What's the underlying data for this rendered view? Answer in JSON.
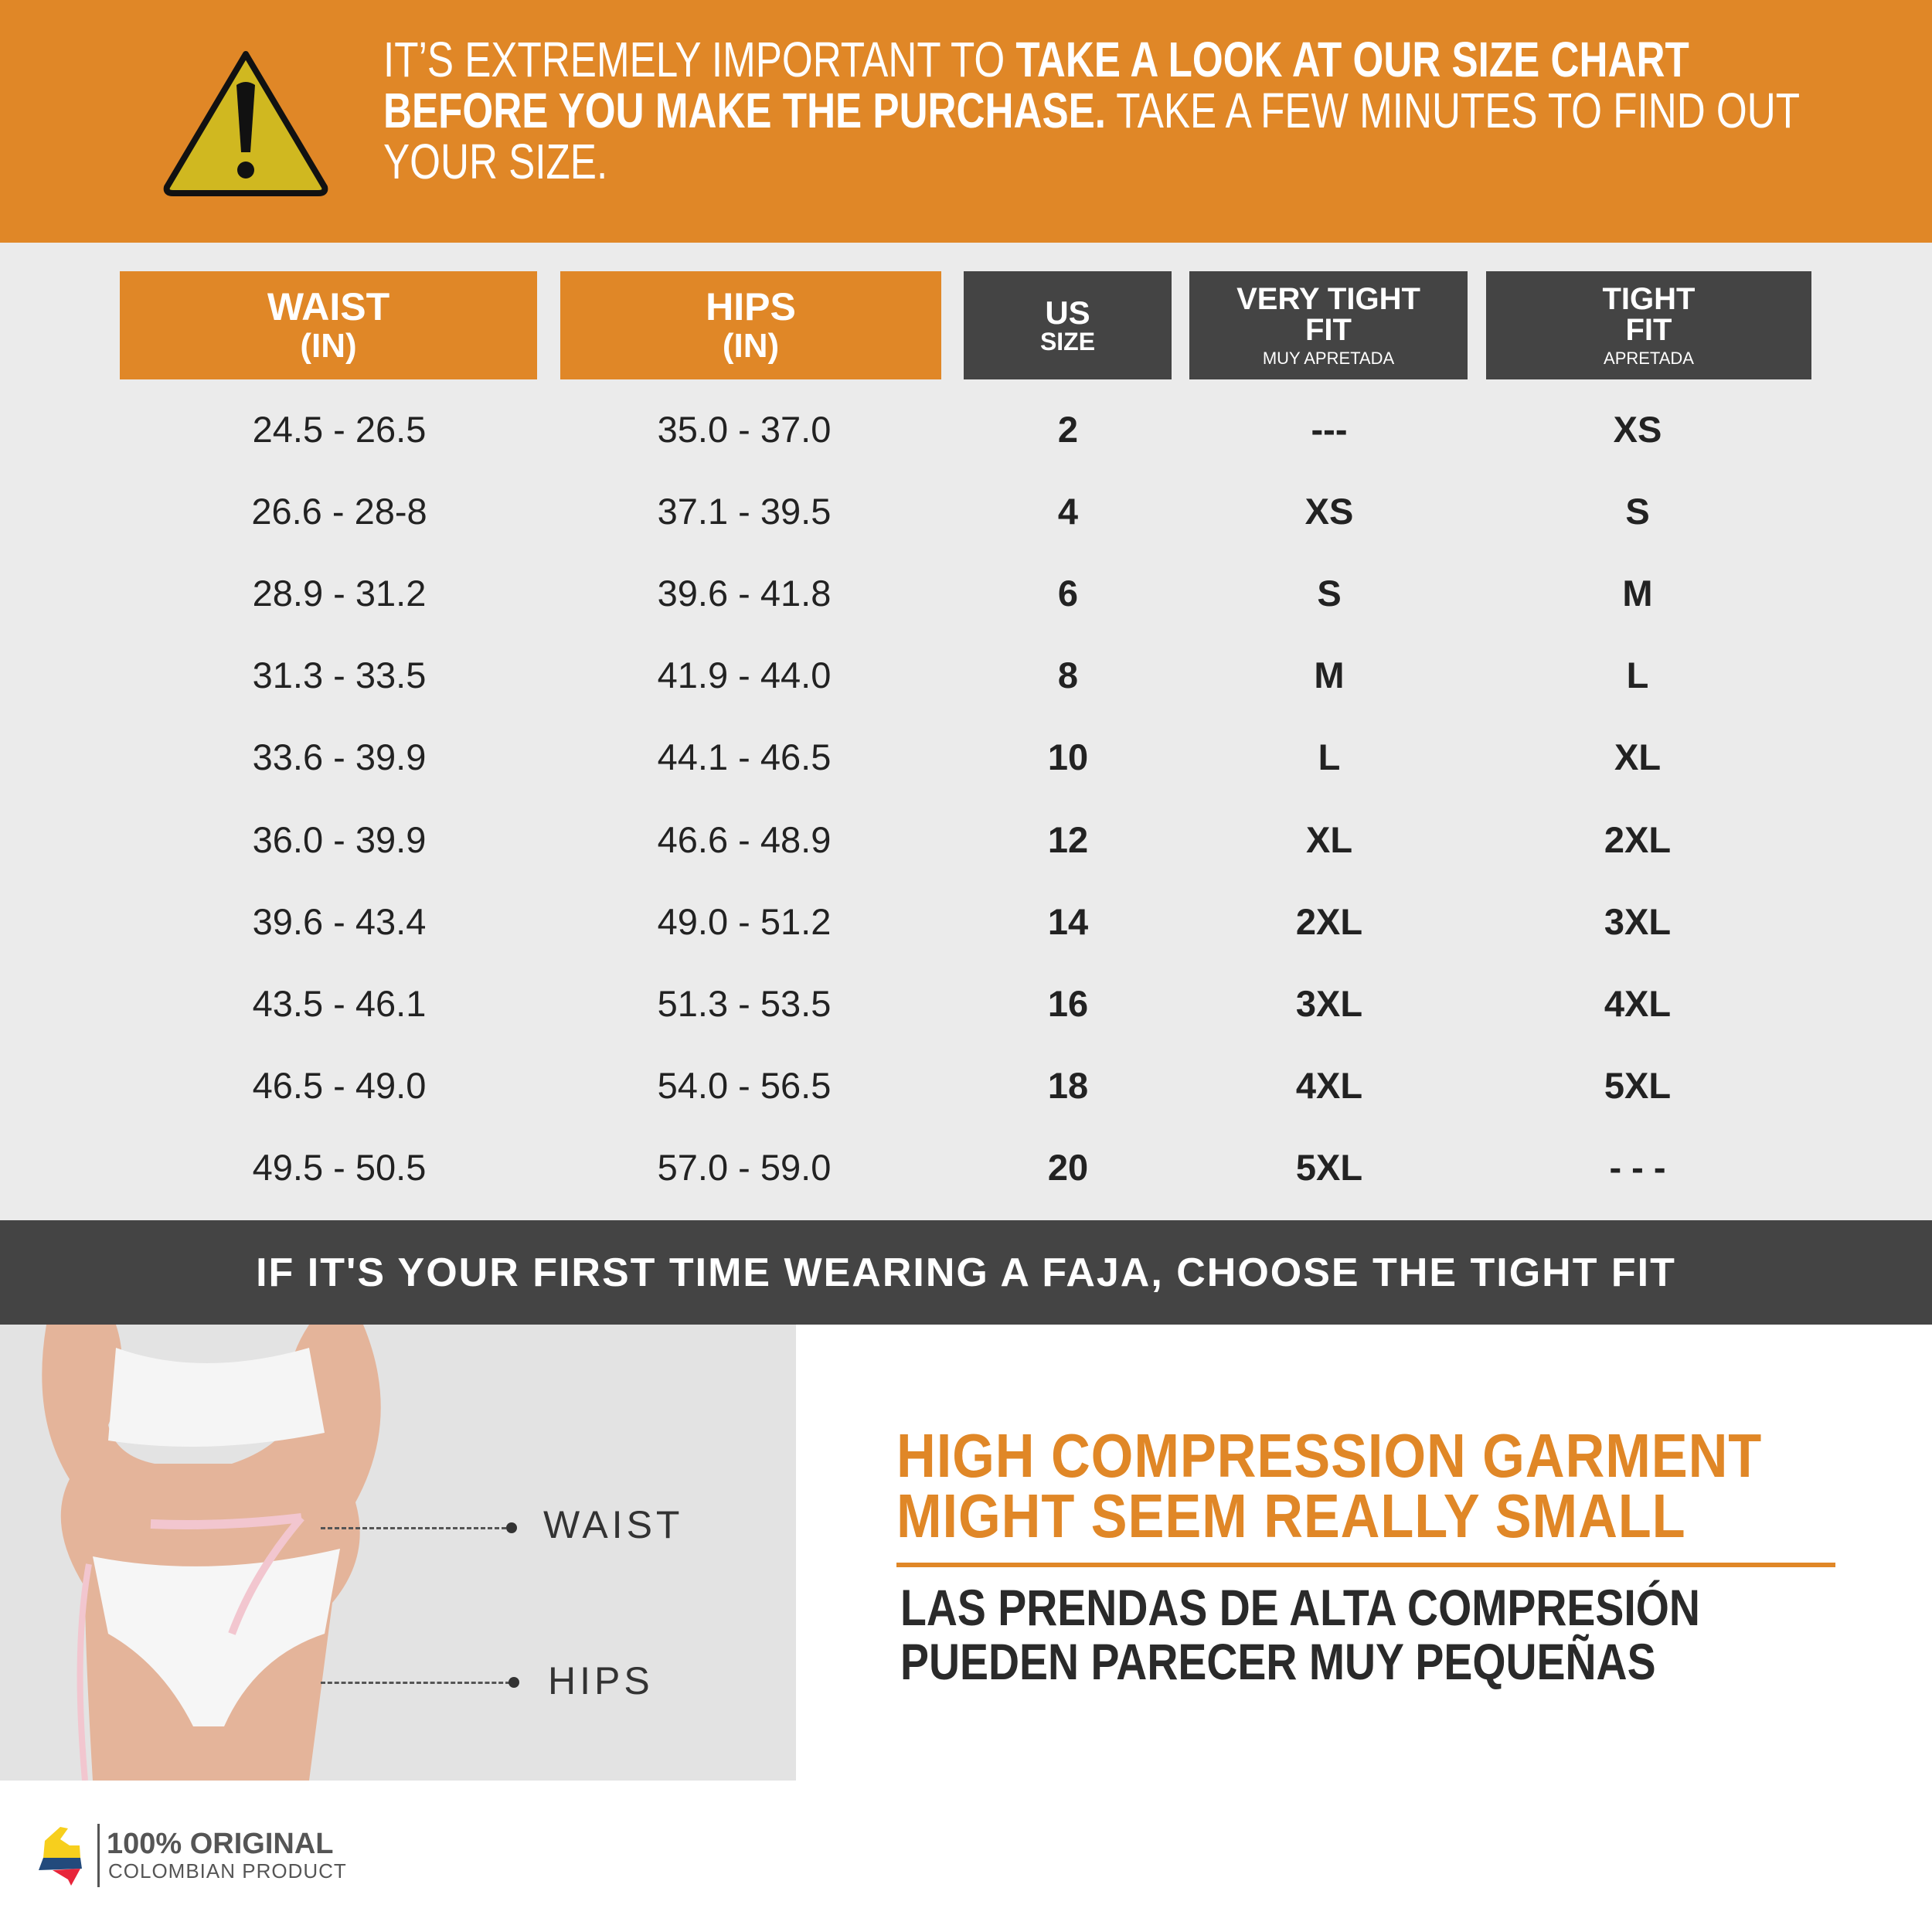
{
  "header": {
    "line_light_1": "IT’S EXTREMELY IMPORTANT TO ",
    "line_bold_1": "TAKE A LOOK AT OUR SIZE CHART BEFORE YOU MAKE THE PURCHASE.",
    "line_light_2": " TAKE A FEW MINUTES TO FIND OUT YOUR SIZE.",
    "icon": "warning-triangle-icon"
  },
  "table": {
    "columns": [
      {
        "title": "WAIST",
        "sub": "(IN)"
      },
      {
        "title": "HIPS",
        "sub": "(IN)"
      },
      {
        "title": "US",
        "sub": "SIZE"
      },
      {
        "title": "VERY TIGHT FIT",
        "sub": "MUY APRETADA"
      },
      {
        "title": "TIGHT FIT",
        "sub": "APRETADA"
      }
    ],
    "rows": [
      [
        "24.5 - 26.5",
        "35.0 - 37.0",
        "2",
        "---",
        "XS"
      ],
      [
        "26.6 - 28-8",
        "37.1 - 39.5",
        "4",
        "XS",
        "S"
      ],
      [
        "28.9 - 31.2",
        "39.6 - 41.8",
        "6",
        "S",
        "M"
      ],
      [
        "31.3 - 33.5",
        "41.9 - 44.0",
        "8",
        "M",
        "L"
      ],
      [
        "33.6 - 39.9",
        "44.1 - 46.5",
        "10",
        "L",
        "XL"
      ],
      [
        "36.0 - 39.9",
        "46.6 - 48.9",
        "12",
        "XL",
        "2XL"
      ],
      [
        "39.6 - 43.4",
        "49.0 - 51.2",
        "14",
        "2XL",
        "3XL"
      ],
      [
        "43.5 - 46.1",
        "51.3 - 53.5",
        "16",
        "3XL",
        "4XL"
      ],
      [
        "46.5 - 49.0",
        "54.0 - 56.5",
        "18",
        "4XL",
        "5XL"
      ],
      [
        "49.5 - 50.5",
        "57.0 - 59.0",
        "20",
        "5XL",
        "- - -"
      ]
    ]
  },
  "banner": "IF IT'S YOUR FIRST TIME WEARING A FAJA, CHOOSE THE TIGHT FIT",
  "photo": {
    "waist_label": "WAIST",
    "hips_label": "HIPS"
  },
  "notice": {
    "english": [
      "HIGH COMPRESSION GARMENT",
      "MIGHT SEEM REALLY SMALL"
    ],
    "spanish": [
      "LAS PRENDAS DE ALTA COMPRESIÓN",
      "PUEDEN PARECER MUY PEQUEÑAS"
    ]
  },
  "logo": {
    "line1": "100% ORIGINAL",
    "line2": "COLOMBIAN PRODUCT"
  },
  "colors": {
    "orange": "#e08727",
    "dark": "#444444",
    "background": "#ebebeb"
  }
}
